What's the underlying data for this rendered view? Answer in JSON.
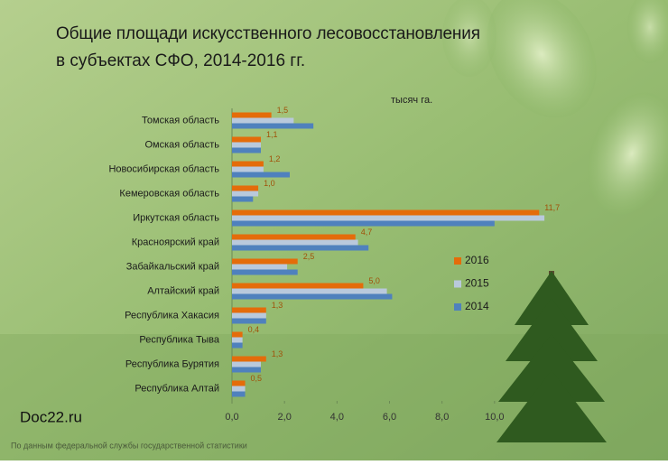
{
  "chart_data": {
    "type": "bar",
    "orientation": "horizontal",
    "title": [
      "Общие площади искусственного лесовосстановления",
      "в субъектах СФО, 2014-2016 гг."
    ],
    "xlabel": "тысяч га.",
    "categories": [
      "Томская область",
      "Омская область",
      "Новосибирская область",
      "Кемеровская область",
      "Иркутская область",
      "Красноярский край",
      "Забайкальский край",
      "Алтайский край",
      "Республика Хакасия",
      "Республика Тыва",
      "Республика Бурятия",
      "Республика Алтай"
    ],
    "series": [
      {
        "name": "2016",
        "color": "#e46c0a",
        "values": [
          1.5,
          1.1,
          1.2,
          1.0,
          11.7,
          4.7,
          2.5,
          5.0,
          1.3,
          0.4,
          1.3,
          0.5
        ],
        "value_labels": [
          "1,5",
          "1,1",
          "1,2",
          "1,0",
          "11,7",
          "4,7",
          "2,5",
          "5,0",
          "1,3",
          "0,4",
          "1,3",
          "0,5"
        ]
      },
      {
        "name": "2015",
        "color": "#b9c9dc",
        "values": [
          2.35,
          1.1,
          1.2,
          1.0,
          11.9,
          4.8,
          2.1,
          5.9,
          1.3,
          0.4,
          1.1,
          0.5
        ]
      },
      {
        "name": "2014",
        "color": "#4f81bd",
        "values": [
          3.1,
          1.1,
          2.2,
          0.8,
          10.0,
          5.2,
          2.5,
          6.1,
          1.3,
          0.4,
          1.1,
          0.5
        ]
      }
    ],
    "xlim": [
      0,
      12
    ],
    "xticks": [
      {
        "value": 0,
        "label": "0,0"
      },
      {
        "value": 2,
        "label": "2,0"
      },
      {
        "value": 4,
        "label": "4,0"
      },
      {
        "value": 6,
        "label": "6,0"
      },
      {
        "value": 8,
        "label": "8,0"
      },
      {
        "value": 10,
        "label": "10,0"
      }
    ],
    "grid": false,
    "legend": "right"
  },
  "watermark": "Doc22.ru",
  "source": "По данным федеральной службы государственной статистики"
}
